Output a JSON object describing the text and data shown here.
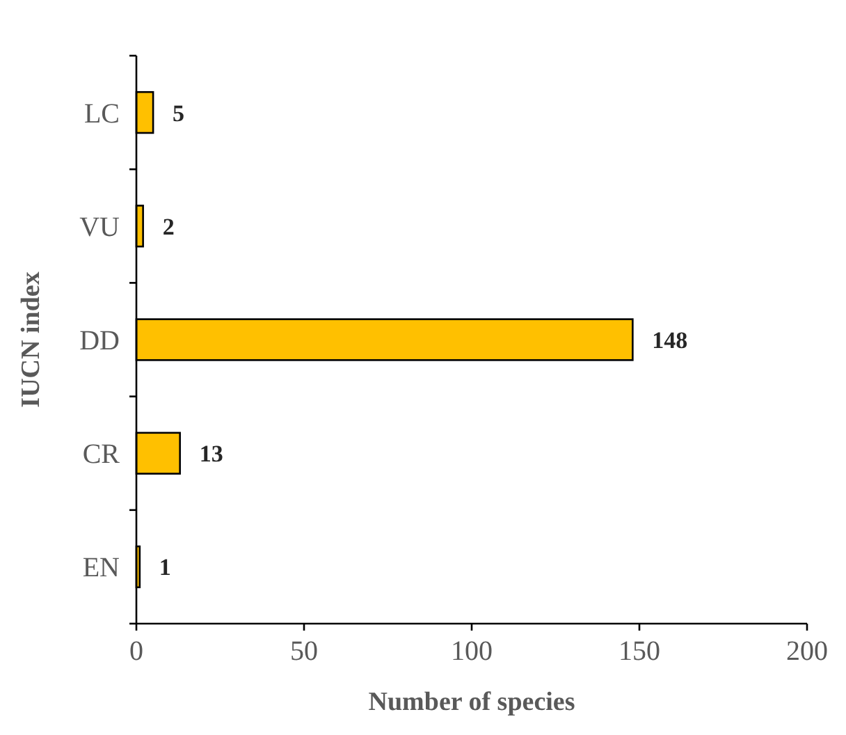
{
  "chart_data": {
    "type": "bar",
    "orientation": "horizontal",
    "xlabel": "Number of species",
    "ylabel": "IUCN index",
    "categories": [
      "LC",
      "VU",
      "DD",
      "CR",
      "EN"
    ],
    "values": [
      5,
      2,
      148,
      13,
      1
    ],
    "color": "#ffc000",
    "xlim": [
      0,
      200
    ],
    "xticks": [
      0,
      50,
      100,
      150,
      200
    ],
    "data_labels": true
  }
}
